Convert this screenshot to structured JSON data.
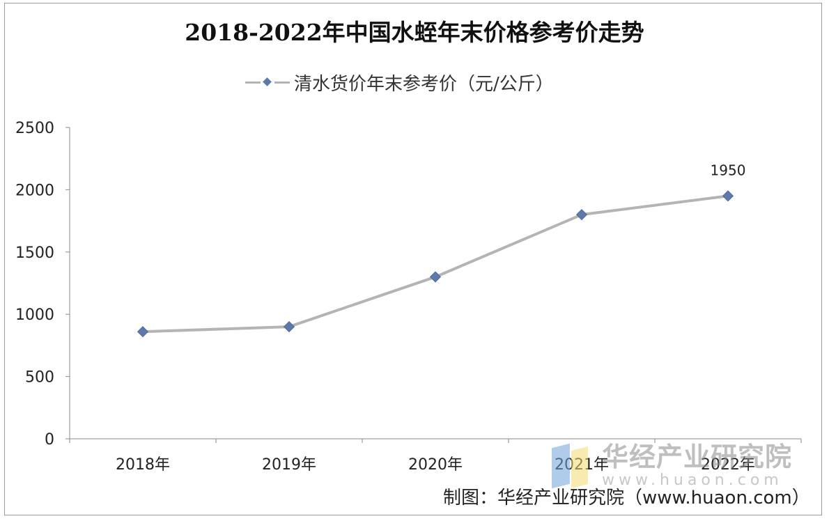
{
  "chart_data": {
    "type": "line",
    "title": "2018-2022年中国水蛭年末价格参考价走势",
    "categories": [
      "2018年",
      "2019年",
      "2020年",
      "2021年",
      "2022年"
    ],
    "series": [
      {
        "name": "清水货价年末参考价（元/公斤）",
        "values": [
          860,
          900,
          1300,
          1800,
          1950
        ],
        "color": "#b4b4b4",
        "marker_color": "#5d79ab",
        "marker": "diamond"
      }
    ],
    "data_labels": [
      {
        "category": "2022年",
        "text": "1950"
      }
    ],
    "ylim": [
      0,
      2500
    ],
    "yticks": [
      "0",
      "500",
      "1000",
      "1500",
      "2000",
      "2500"
    ],
    "xlabel": "",
    "ylabel": "",
    "grid": false,
    "legend_position": "top"
  },
  "watermark": {
    "name": "华经产业研究院",
    "url": "www.huaon.com"
  },
  "source_note": "制图：华经产业研究院（www.huaon.com）"
}
